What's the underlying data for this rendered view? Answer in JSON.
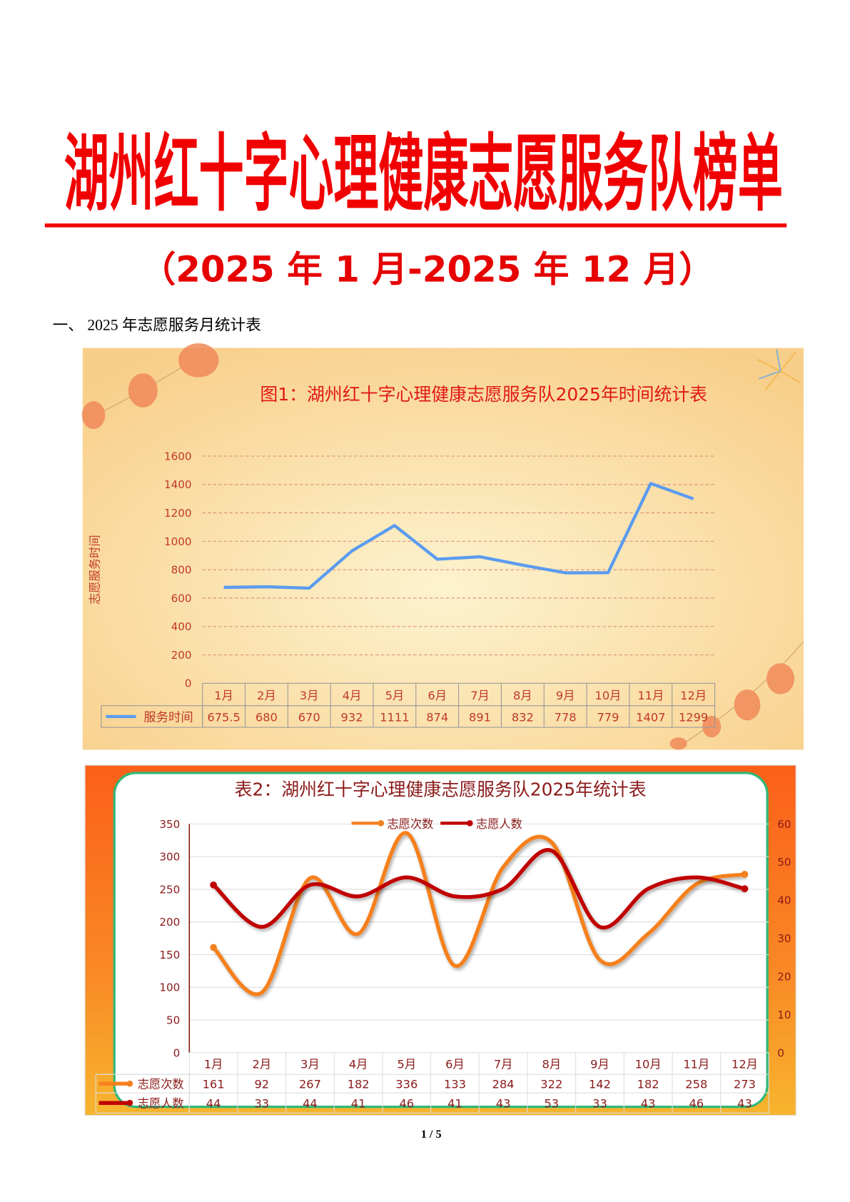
{
  "document": {
    "title": "湖州红十字心理健康志愿服务队榜单",
    "subtitle": "（2025 年 1 月-2025 年 12 月）",
    "section_heading": "一、 2025 年志愿服务月统计表",
    "page_number": "1 / 5"
  },
  "chart_data": [
    {
      "type": "line",
      "title": "图1：湖州红十字心理健康志愿服务队2025年时间统计表",
      "ylabel": "志愿服务时间",
      "xlabel": "",
      "categories": [
        "1月",
        "2月",
        "3月",
        "4月",
        "5月",
        "6月",
        "7月",
        "8月",
        "9月",
        "10月",
        "11月",
        "12月"
      ],
      "series": [
        {
          "name": "服务时间",
          "values": [
            675.5,
            680,
            670,
            932,
            1111,
            874,
            891,
            832,
            778,
            779,
            1407,
            1299
          ],
          "labels": [
            "675.5",
            "680",
            "670",
            "932",
            "1111",
            "874",
            "891",
            "832",
            "778",
            "779",
            "1407",
            "1299"
          ],
          "color": "#5b9bef"
        }
      ],
      "ylim": [
        0,
        1600
      ],
      "yticks": [
        "0",
        "200",
        "400",
        "600",
        "800",
        "1000",
        "1200",
        "1400",
        "1600"
      ],
      "grid": true,
      "legend": "data-table"
    },
    {
      "type": "line",
      "title": "表2：湖州红十字心理健康志愿服务队2025年统计表",
      "categories": [
        "1月",
        "2月",
        "3月",
        "4月",
        "5月",
        "6月",
        "7月",
        "8月",
        "9月",
        "10月",
        "11月",
        "12月"
      ],
      "series": [
        {
          "name": "志愿次数",
          "axis": "left",
          "values": [
            161,
            92,
            267,
            182,
            336,
            133,
            284,
            322,
            142,
            182,
            258,
            273
          ],
          "color": "#f5801f"
        },
        {
          "name": "志愿人数",
          "axis": "right",
          "values": [
            44,
            33,
            44,
            41,
            46,
            41,
            43,
            53,
            33,
            43,
            46,
            43
          ],
          "color": "#c00000"
        }
      ],
      "ylim": [
        0,
        350
      ],
      "yticks": [
        "0",
        "50",
        "100",
        "150",
        "200",
        "250",
        "300",
        "350"
      ],
      "y2lim": [
        0,
        60
      ],
      "y2ticks": [
        "0",
        "10",
        "20",
        "30",
        "40",
        "50",
        "60"
      ],
      "grid": true,
      "smooth": true,
      "legend": "top"
    }
  ]
}
